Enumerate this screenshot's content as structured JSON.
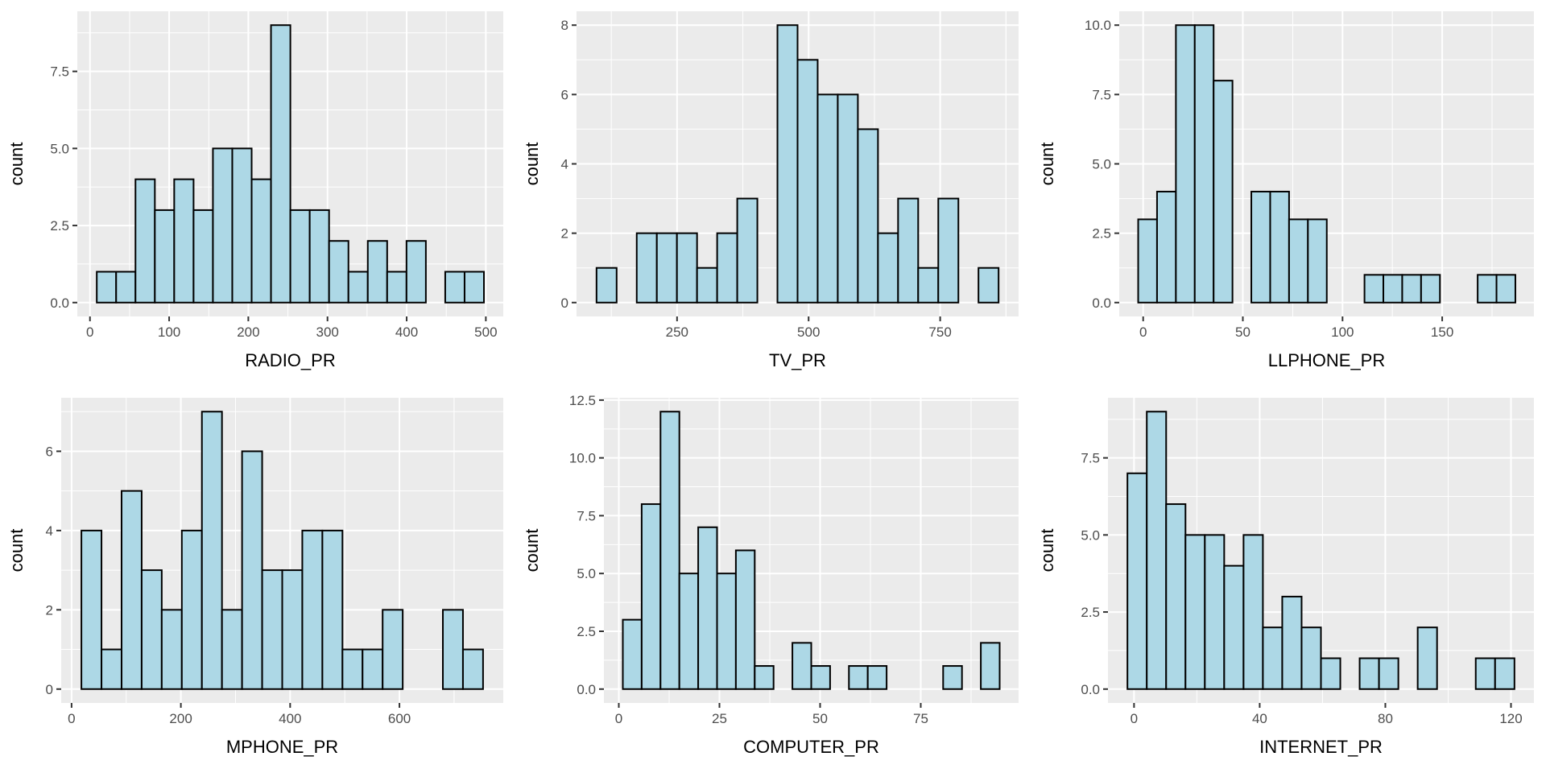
{
  "figure": {
    "bar_fill": "#ADD8E6",
    "bar_outline": "#000000",
    "panel_background": "#EBEBEB"
  },
  "chart_data": [
    {
      "type": "bar",
      "subtype": "histogram",
      "title": "",
      "xlabel": "RADIO_PR",
      "ylabel": "count",
      "bins": 20,
      "bin_start": 8.6,
      "bin_width": 24.45,
      "values": [
        1,
        1,
        4,
        3,
        4,
        3,
        5,
        5,
        4,
        9,
        3,
        3,
        2,
        1,
        2,
        1,
        2,
        0,
        1,
        1
      ],
      "xticks": [
        0,
        100,
        200,
        300,
        400,
        500
      ],
      "xtick_labels": [
        "0",
        "100",
        "200",
        "300",
        "400",
        "500"
      ],
      "yticks": [
        0,
        2.5,
        5,
        7.5
      ],
      "ytick_labels": [
        "0.0",
        "2.5",
        "5.0",
        "7.5"
      ],
      "xlim": [
        -16,
        522
      ],
      "ylim": [
        -0.45,
        9.45
      ],
      "grid": true
    },
    {
      "type": "bar",
      "subtype": "histogram",
      "title": "",
      "xlabel": "TV_PR",
      "ylabel": "count",
      "bins": 20,
      "bin_start": 97,
      "bin_width": 38.2,
      "values": [
        1,
        0,
        2,
        2,
        2,
        1,
        2,
        3,
        0,
        8,
        7,
        6,
        6,
        5,
        2,
        3,
        1,
        3,
        0,
        1
      ],
      "xticks": [
        250,
        500,
        750
      ],
      "xtick_labels": [
        "250",
        "500",
        "750"
      ],
      "yticks": [
        0,
        2,
        4,
        6,
        8
      ],
      "ytick_labels": [
        "0",
        "2",
        "4",
        "6",
        "8"
      ],
      "xlim": [
        59,
        899
      ],
      "ylim": [
        -0.4,
        8.4
      ],
      "grid": true
    },
    {
      "type": "bar",
      "subtype": "histogram",
      "title": "",
      "xlabel": "LLPHONE_PR",
      "ylabel": "count",
      "bins": 20,
      "bin_start": -2.5,
      "bin_width": 9.46,
      "values": [
        3,
        4,
        10,
        10,
        8,
        0,
        4,
        4,
        3,
        3,
        0,
        0,
        1,
        1,
        1,
        1,
        0,
        0,
        1,
        1
      ],
      "xticks": [
        0,
        50,
        100,
        150
      ],
      "xtick_labels": [
        "0",
        "50",
        "100",
        "150"
      ],
      "yticks": [
        0,
        2.5,
        5,
        7.5,
        10
      ],
      "ytick_labels": [
        "0.0",
        "2.5",
        "5.0",
        "7.5",
        "10.0"
      ],
      "xlim": [
        -12,
        196
      ],
      "ylim": [
        -0.5,
        10.5
      ],
      "grid": true
    },
    {
      "type": "bar",
      "subtype": "histogram",
      "title": "",
      "xlabel": "MPHONE_PR",
      "ylabel": "count",
      "bins": 20,
      "bin_start": 18,
      "bin_width": 36.75,
      "values": [
        4,
        1,
        5,
        3,
        2,
        4,
        7,
        2,
        6,
        3,
        3,
        4,
        4,
        1,
        1,
        2,
        0,
        0,
        2,
        1
      ],
      "xticks": [
        0,
        200,
        400,
        600
      ],
      "xtick_labels": [
        "0",
        "200",
        "400",
        "600"
      ],
      "yticks": [
        0,
        2,
        4,
        6
      ],
      "ytick_labels": [
        "0",
        "2",
        "4",
        "6"
      ],
      "xlim": [
        -19,
        790
      ],
      "ylim": [
        -0.35,
        7.35
      ],
      "grid": true
    },
    {
      "type": "bar",
      "subtype": "histogram",
      "title": "",
      "xlabel": "COMPUTER_PR",
      "ylabel": "count",
      "bins": 20,
      "bin_start": 1.0,
      "bin_width": 4.68,
      "values": [
        3,
        8,
        12,
        5,
        7,
        5,
        6,
        1,
        0,
        2,
        1,
        0,
        1,
        1,
        0,
        0,
        0,
        1,
        0,
        2
      ],
      "xticks": [
        0,
        25,
        50,
        75
      ],
      "xtick_labels": [
        "0",
        "25",
        "50",
        "75"
      ],
      "yticks": [
        0,
        2.5,
        5,
        7.5,
        10,
        12.5
      ],
      "ytick_labels": [
        "0.0",
        "2.5",
        "5.0",
        "7.5",
        "10.0",
        "12.5"
      ],
      "xlim": [
        -3.7,
        99.3
      ],
      "ylim": [
        -0.6,
        12.6
      ],
      "grid": true
    },
    {
      "type": "bar",
      "subtype": "histogram",
      "title": "",
      "xlabel": "INTERNET_PR",
      "ylabel": "count",
      "bins": 20,
      "bin_start": -2.1,
      "bin_width": 6.16,
      "values": [
        7,
        9,
        6,
        5,
        5,
        4,
        5,
        2,
        3,
        2,
        1,
        0,
        1,
        1,
        0,
        2,
        0,
        0,
        1,
        1
      ],
      "xticks": [
        0,
        40,
        80,
        120
      ],
      "xtick_labels": [
        "0",
        "40",
        "80",
        "120"
      ],
      "yticks": [
        0,
        2.5,
        5,
        7.5
      ],
      "ytick_labels": [
        "0.0",
        "2.5",
        "5.0",
        "7.5"
      ],
      "xlim": [
        -8.3,
        127.3
      ],
      "ylim": [
        -0.45,
        9.45
      ],
      "grid": true
    }
  ]
}
